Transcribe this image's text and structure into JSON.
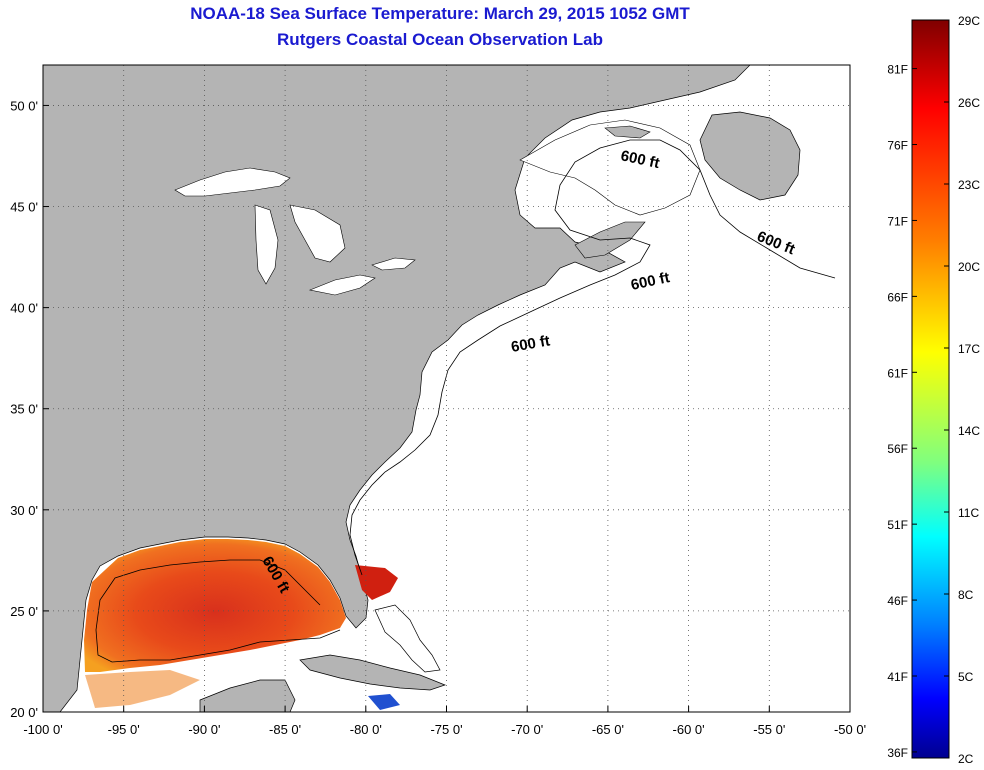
{
  "header": {
    "title": "NOAA-18 Sea Surface Temperature:  March 29, 2015 1052 GMT",
    "subtitle": "Rutgers Coastal Ocean Observation Lab"
  },
  "map": {
    "lon_range": [
      -100,
      -50
    ],
    "lat_range": [
      20,
      52
    ],
    "lon_ticks": [
      "-100 0'",
      "-95 0'",
      "-90 0'",
      "-85 0'",
      "-80 0'",
      "-75 0'",
      "-70 0'",
      "-65 0'",
      "-60 0'",
      "-55 0'",
      "-50 0'"
    ],
    "lat_ticks": [
      "50 0'",
      "45 0'",
      "40 0'",
      "35 0'",
      "30 0'",
      "25 0'",
      "20 0'"
    ],
    "contour_label": "600 ft",
    "land_color": "#b4b4b4",
    "ocean_color": "#ffffff",
    "grid": "dotted"
  },
  "colorbar": {
    "fahrenheit_labels": [
      "81F",
      "76F",
      "71F",
      "66F",
      "61F",
      "56F",
      "51F",
      "46F",
      "41F",
      "36F"
    ],
    "celsius_labels": [
      "29C",
      "26C",
      "23C",
      "20C",
      "17C",
      "14C",
      "11C",
      "8C",
      "5C",
      "2C"
    ],
    "colors": [
      "#7f0000",
      "#ff0000",
      "#ff8000",
      "#ffff00",
      "#80ff80",
      "#00ffff",
      "#0080ff",
      "#0000ff",
      "#00008f"
    ]
  }
}
